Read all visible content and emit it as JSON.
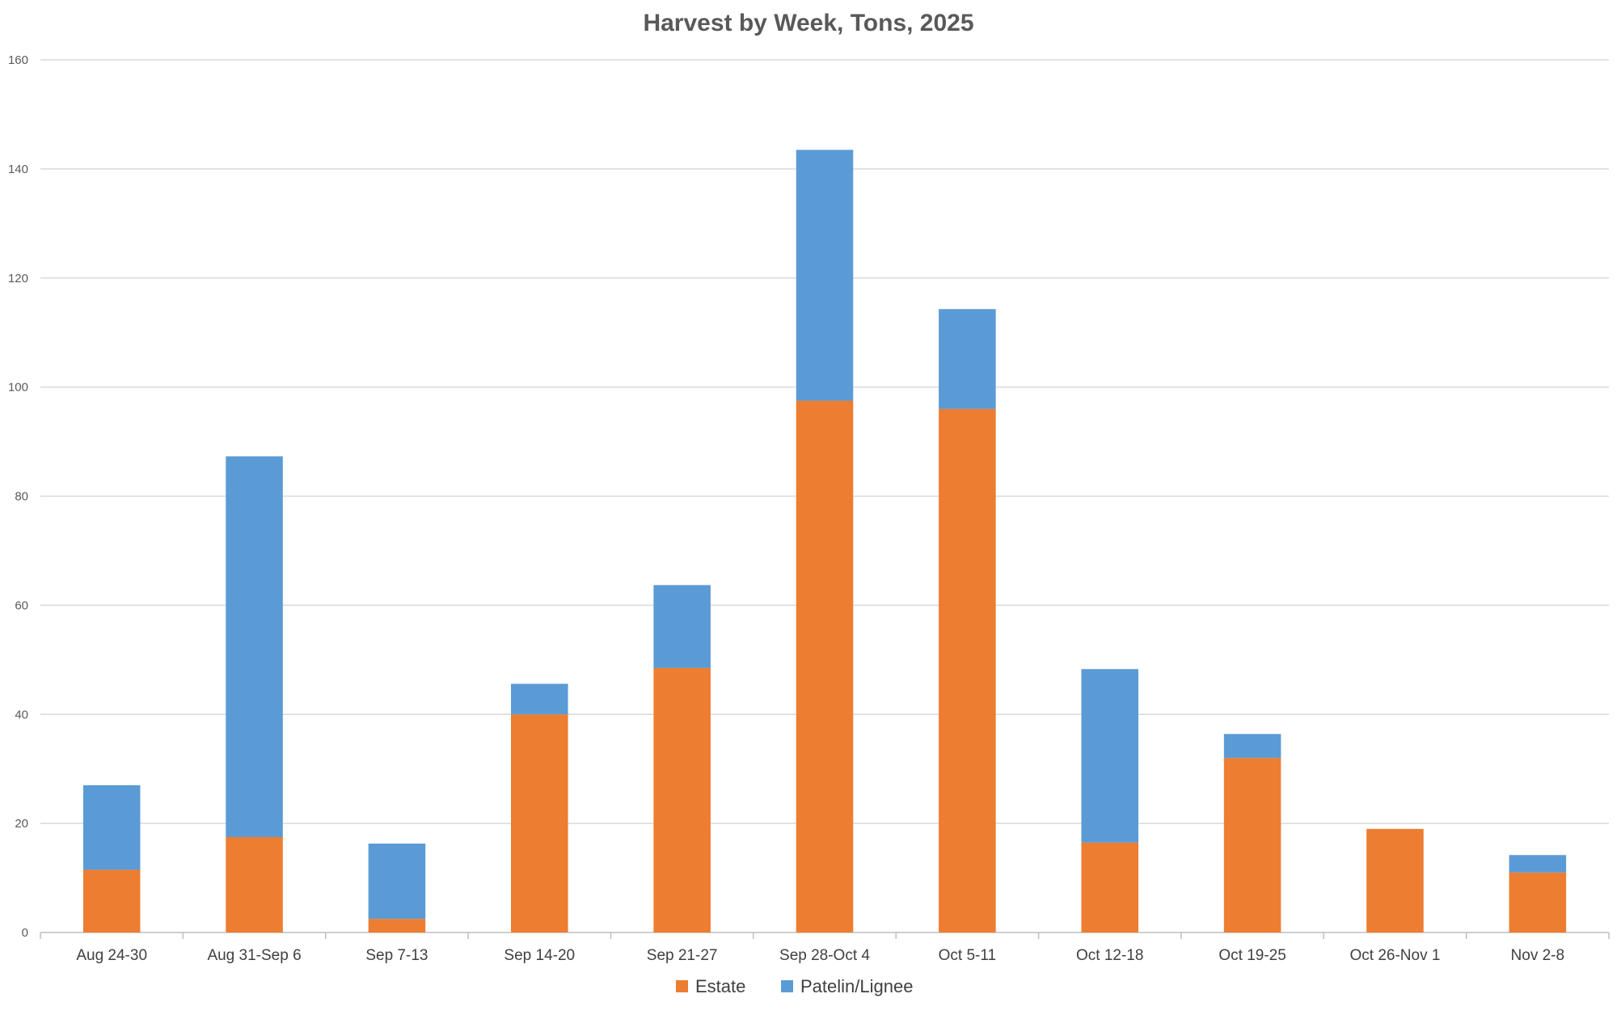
{
  "chart_data": {
    "type": "bar",
    "stacked": true,
    "title": "Harvest by Week, Tons, 2025",
    "xlabel": "",
    "ylabel": "",
    "categories": [
      "Aug 24-30",
      "Aug 31-Sep 6",
      "Sep 7-13",
      "Sep 14-20",
      "Sep 21-27",
      "Sep 28-Oct 4",
      "Oct 5-11",
      "Oct 12-18",
      "Oct 19-25",
      "Oct 26-Nov 1",
      "Nov 2-8"
    ],
    "series": [
      {
        "name": "Estate",
        "color": "#ED7D31",
        "values": [
          11.5,
          17.5,
          2.5,
          40,
          48.5,
          97.5,
          96,
          16.5,
          32,
          19,
          11
        ]
      },
      {
        "name": "Patelin/Lignee",
        "color": "#5B9BD5",
        "values": [
          15.5,
          69.8,
          13.8,
          5.6,
          15.2,
          46,
          18.3,
          31.8,
          4.4,
          0,
          3.2
        ]
      }
    ],
    "ylim": [
      0,
      160
    ],
    "yticks": [
      0,
      20,
      40,
      60,
      80,
      100,
      120,
      140,
      160
    ],
    "grid": true,
    "legend_position": "bottom"
  }
}
